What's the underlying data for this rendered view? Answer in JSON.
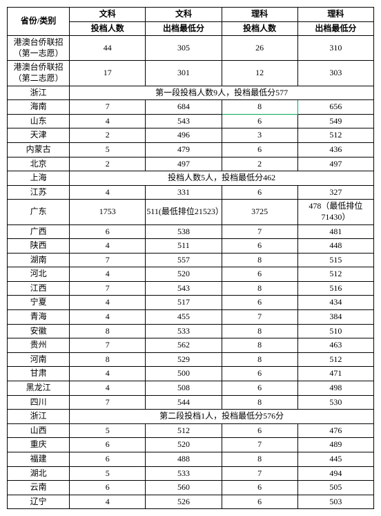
{
  "headers": {
    "province": "省份/类别",
    "wenke": "文科",
    "like": "理科",
    "sub_count": "投档人数",
    "sub_min": "出档最低分"
  },
  "rows": [
    {
      "type": "data",
      "province": "港澳台侨联招（第一志愿）",
      "wk_count": "44",
      "wk_min": "305",
      "lk_count": "26",
      "lk_min": "310"
    },
    {
      "type": "data",
      "province": "港澳台侨联招（第二志愿）",
      "wk_count": "17",
      "wk_min": "301",
      "lk_count": "12",
      "lk_min": "303"
    },
    {
      "type": "merged",
      "province": "浙江",
      "note": "第一段投档人数9人，投档最低分577"
    },
    {
      "type": "data",
      "province": "海南",
      "wk_count": "7",
      "wk_min": "684",
      "lk_count": "8",
      "lk_min": "656",
      "highlight": true
    },
    {
      "type": "data",
      "province": "山东",
      "wk_count": "4",
      "wk_min": "543",
      "lk_count": "6",
      "lk_min": "549"
    },
    {
      "type": "data",
      "province": "天津",
      "wk_count": "2",
      "wk_min": "496",
      "lk_count": "3",
      "lk_min": "512"
    },
    {
      "type": "data",
      "province": "内蒙古",
      "wk_count": "5",
      "wk_min": "479",
      "lk_count": "6",
      "lk_min": "436"
    },
    {
      "type": "data",
      "province": "北京",
      "wk_count": "2",
      "wk_min": "497",
      "lk_count": "2",
      "lk_min": "497"
    },
    {
      "type": "merged",
      "province": "上海",
      "note": "投档人数5人，投档最低分462"
    },
    {
      "type": "data",
      "province": "江苏",
      "wk_count": "4",
      "wk_min": "331",
      "lk_count": "6",
      "lk_min": "327"
    },
    {
      "type": "data",
      "province": "广东",
      "wk_count": "1753",
      "wk_min": "511(最低排位21523）",
      "lk_count": "3725",
      "lk_min": "478（最低排位71430）"
    },
    {
      "type": "data",
      "province": "广西",
      "wk_count": "6",
      "wk_min": "538",
      "lk_count": "7",
      "lk_min": "481"
    },
    {
      "type": "data",
      "province": "陕西",
      "wk_count": "4",
      "wk_min": "511",
      "lk_count": "6",
      "lk_min": "448"
    },
    {
      "type": "data",
      "province": "湖南",
      "wk_count": "7",
      "wk_min": "557",
      "lk_count": "8",
      "lk_min": "515"
    },
    {
      "type": "data",
      "province": "河北",
      "wk_count": "4",
      "wk_min": "520",
      "lk_count": "6",
      "lk_min": "512"
    },
    {
      "type": "data",
      "province": "江西",
      "wk_count": "7",
      "wk_min": "543",
      "lk_count": "8",
      "lk_min": "516"
    },
    {
      "type": "data",
      "province": "宁夏",
      "wk_count": "4",
      "wk_min": "517",
      "lk_count": "6",
      "lk_min": "434"
    },
    {
      "type": "data",
      "province": "青海",
      "wk_count": "4",
      "wk_min": "455",
      "lk_count": "7",
      "lk_min": "384"
    },
    {
      "type": "data",
      "province": "安徽",
      "wk_count": "8",
      "wk_min": "533",
      "lk_count": "8",
      "lk_min": "510"
    },
    {
      "type": "data",
      "province": "贵州",
      "wk_count": "7",
      "wk_min": "562",
      "lk_count": "8",
      "lk_min": "463"
    },
    {
      "type": "data",
      "province": "河南",
      "wk_count": "8",
      "wk_min": "529",
      "lk_count": "8",
      "lk_min": "512"
    },
    {
      "type": "data",
      "province": "甘肃",
      "wk_count": "4",
      "wk_min": "500",
      "lk_count": "6",
      "lk_min": "471"
    },
    {
      "type": "data",
      "province": "黑龙江",
      "wk_count": "4",
      "wk_min": "508",
      "lk_count": "6",
      "lk_min": "498"
    },
    {
      "type": "data",
      "province": "四川",
      "wk_count": "7",
      "wk_min": "544",
      "lk_count": "8",
      "lk_min": "530"
    },
    {
      "type": "merged",
      "province": "浙江",
      "note": "第二段投档1人，投档最低分576分"
    },
    {
      "type": "data",
      "province": "山西",
      "wk_count": "5",
      "wk_min": "512",
      "lk_count": "6",
      "lk_min": "476"
    },
    {
      "type": "data",
      "province": "重庆",
      "wk_count": "6",
      "wk_min": "520",
      "lk_count": "7",
      "lk_min": "489"
    },
    {
      "type": "data",
      "province": "福建",
      "wk_count": "6",
      "wk_min": "488",
      "lk_count": "8",
      "lk_min": "445"
    },
    {
      "type": "data",
      "province": "湖北",
      "wk_count": "5",
      "wk_min": "533",
      "lk_count": "7",
      "lk_min": "494"
    },
    {
      "type": "data",
      "province": "云南",
      "wk_count": "6",
      "wk_min": "560",
      "lk_count": "6",
      "lk_min": "505"
    },
    {
      "type": "data",
      "province": "辽宁",
      "wk_count": "4",
      "wk_min": "526",
      "lk_count": "6",
      "lk_min": "503"
    }
  ]
}
